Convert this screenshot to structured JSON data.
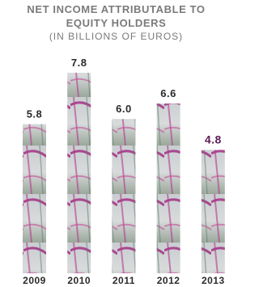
{
  "chart_data": {
    "type": "bar",
    "title": "NET INCOME ATTRIBUTABLE TO EQUITY HOLDERS",
    "subtitle": "(IN BILLIONS OF EUROS)",
    "categories": [
      "2009",
      "2010",
      "2011",
      "2012",
      "2013"
    ],
    "values": [
      5.8,
      7.8,
      6.0,
      6.6,
      4.8
    ],
    "value_labels": [
      "5.8",
      "7.8",
      "6.0",
      "6.6",
      "4.8"
    ]
  }
}
